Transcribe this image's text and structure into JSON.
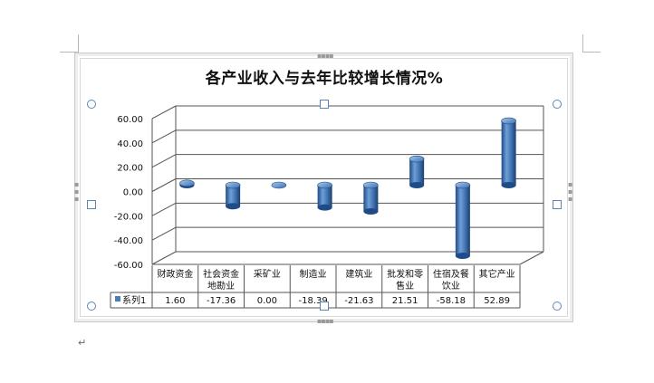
{
  "document": {
    "paragraph_mark": "↵"
  },
  "chart_data": {
    "type": "bar",
    "style": "3d-cylinder",
    "title": "各产业收入与去年比较增长情况%",
    "categories": [
      "财政资金",
      "社会资金地勘业",
      "采矿业",
      "制造业",
      "建筑业",
      "批发和零售业",
      "住宿及餐饮业",
      "其它产业"
    ],
    "category_lines": [
      [
        "财政资金"
      ],
      [
        "社会资金",
        "地勘业"
      ],
      [
        "采矿业"
      ],
      [
        "制造业"
      ],
      [
        "建筑业"
      ],
      [
        "批发和零",
        "售业"
      ],
      [
        "住宿及餐",
        "饮业"
      ],
      [
        "其它产业"
      ]
    ],
    "series": [
      {
        "name": "系列1",
        "values": [
          1.6,
          -17.36,
          0.0,
          -18.39,
          -21.63,
          21.51,
          -58.18,
          52.89
        ],
        "value_labels": [
          "1.60",
          "-17.36",
          "0.00",
          "-18.39",
          "-21.63",
          "21.51",
          "-58.18",
          "52.89"
        ],
        "color": "#4a7ebb"
      }
    ],
    "ylim": [
      -60,
      60
    ],
    "yticks": [
      "60.00",
      "40.00",
      "20.00",
      "0.00",
      "-20.00",
      "-40.00",
      "-60.00"
    ],
    "grid": true,
    "data_table": true,
    "colors": {
      "bar": "#4a7ebb",
      "bar_dark": "#1f4b86",
      "bar_light": "#9cc0ea",
      "grid": "#555555"
    }
  }
}
